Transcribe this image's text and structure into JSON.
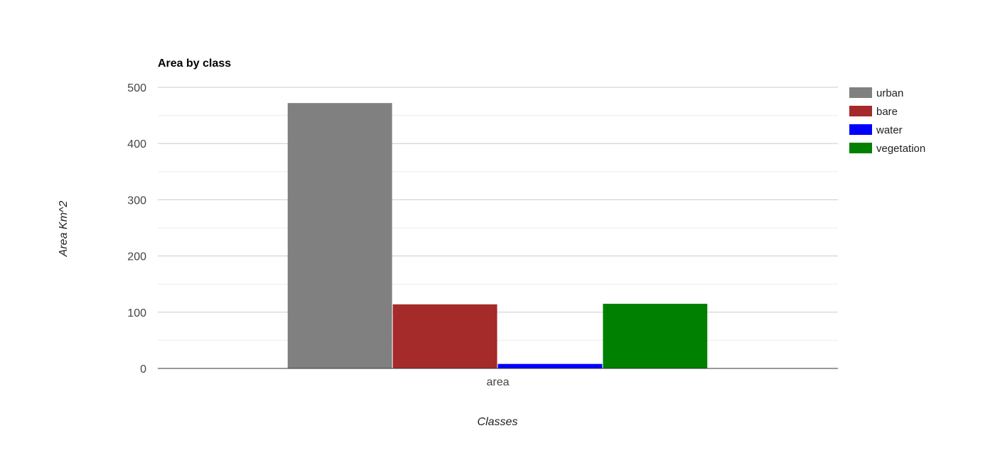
{
  "chart_data": {
    "type": "bar",
    "title": "Area by class",
    "xlabel": "Classes",
    "ylabel": "Area Km^2",
    "categories": [
      "area"
    ],
    "series": [
      {
        "name": "urban",
        "values": [
          472
        ],
        "color": "#808080"
      },
      {
        "name": "bare",
        "values": [
          114
        ],
        "color": "#a52a2a"
      },
      {
        "name": "water",
        "values": [
          8
        ],
        "color": "#0000ff"
      },
      {
        "name": "vegetation",
        "values": [
          115
        ],
        "color": "#008000"
      }
    ],
    "ylim": [
      0,
      500
    ],
    "yticks": [
      "0",
      "100",
      "200",
      "300",
      "400",
      "500"
    ],
    "grid": true,
    "legend_position": "right"
  }
}
